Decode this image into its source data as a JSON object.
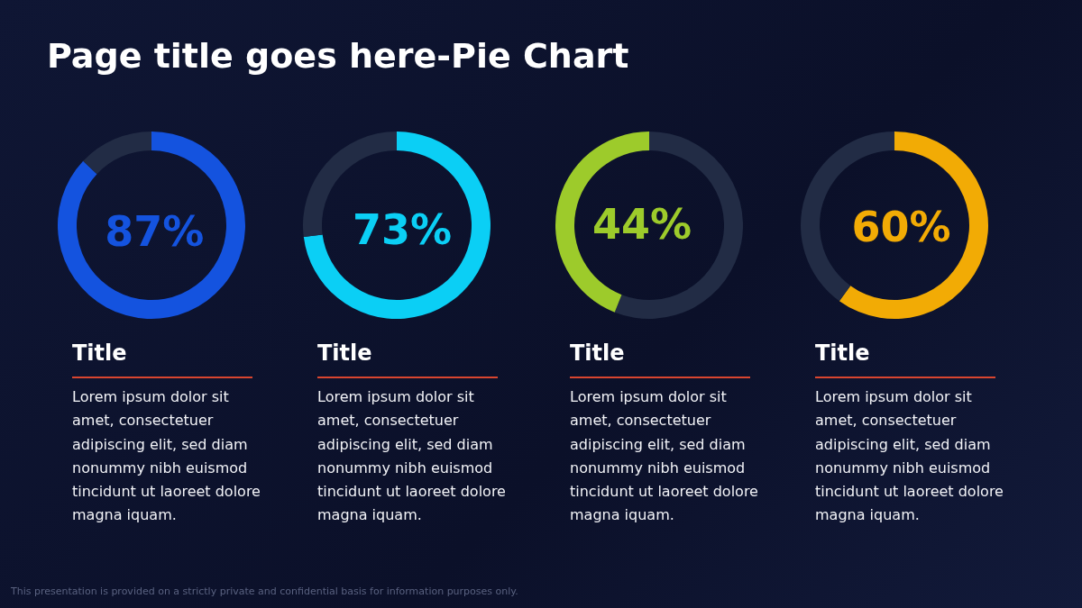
{
  "chart_data": [
    {
      "type": "other",
      "title": "Page title goes here-Pie Chart",
      "annotations": [
        "This presentation is provided on a strictly private and confidential basis for information purposes only."
      ]
    },
    {
      "type": "donut",
      "title": "Title",
      "categories": [
        null,
        null
      ],
      "values": [
        87,
        13
      ],
      "colors": [
        "#1453df",
        "#222c45"
      ],
      "value_labels": [
        "87%",
        null
      ],
      "annotations": [
        "Lorem ipsum dolor sit\namet, consectetuer\nadipiscing elit, sed diam\nnonummy nibh euismod\ntincidunt ut laoreet dolore\nmagna iquam."
      ]
    },
    {
      "type": "donut",
      "title": "Title",
      "categories": [
        null,
        null
      ],
      "values": [
        73,
        27
      ],
      "colors": [
        "#0bcff5",
        "#222c45"
      ],
      "value_labels": [
        "73%",
        null
      ],
      "annotations": [
        "Lorem ipsum dolor sit\namet, consectetuer\nadipiscing elit, sed diam\nnonummy nibh euismod\ntincidunt ut laoreet dolore\nmagna iquam."
      ]
    },
    {
      "type": "donut",
      "title": "Title",
      "categories": [
        null,
        null
      ],
      "values": [
        56,
        44
      ],
      "colors": [
        "#222c45",
        "#9dcb2b"
      ],
      "value_labels": [
        null,
        "44%"
      ],
      "annotations": [
        "Lorem ipsum dolor sit\namet, consectetuer\nadipiscing elit, sed diam\nnonummy nibh euismod\ntincidunt ut laoreet dolore\nmagna iquam."
      ]
    },
    {
      "type": "donut",
      "title": "Title",
      "categories": [
        null,
        null
      ],
      "values": [
        60,
        40
      ],
      "colors": [
        "#f2ab05",
        "#222c45"
      ],
      "value_labels": [
        "60%",
        null
      ],
      "annotations": [
        "Lorem ipsum dolor sit\namet, consectetuer\nadipiscing elit, sed diam\nnonummy nibh euismod\ntincidunt ut laoreet dolore\nmagna iquam."
      ]
    }
  ]
}
